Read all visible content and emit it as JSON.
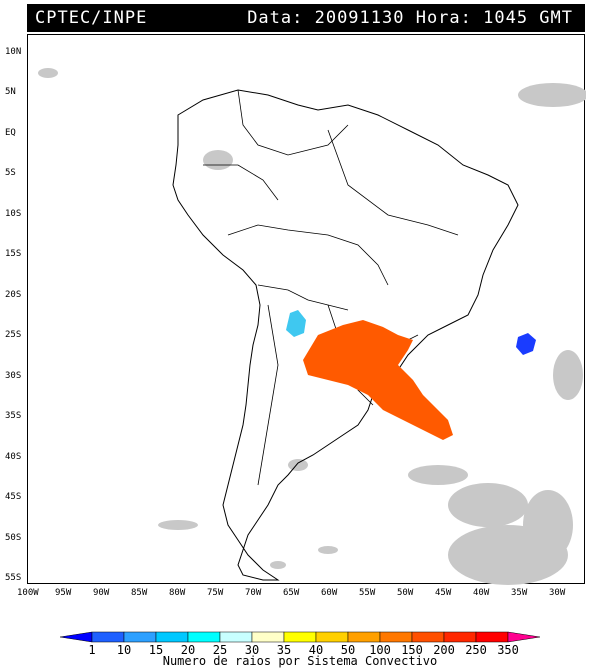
{
  "header": {
    "source": "CPTEC/INPE",
    "datetime": "Data: 20091130 Hora: 1045 GMT"
  },
  "lat_labels": [
    "10N",
    "5N",
    "EQ",
    "5S",
    "10S",
    "15S",
    "20S",
    "25S",
    "30S",
    "35S",
    "40S",
    "45S",
    "50S",
    "55S"
  ],
  "lon_labels": [
    "100W",
    "95W",
    "90W",
    "85W",
    "80W",
    "75W",
    "70W",
    "65W",
    "60W",
    "55W",
    "50W",
    "45W",
    "40W",
    "35W",
    "30W"
  ],
  "colorbar": {
    "title": "Numero de raios por Sistema Convectivo",
    "ticks": [
      "1",
      "10",
      "15",
      "20",
      "25",
      "30",
      "35",
      "40",
      "50",
      "100",
      "150",
      "200",
      "250",
      "350"
    ],
    "colors": [
      "#0000ff",
      "#1e60ff",
      "#2da0ff",
      "#00c8ff",
      "#00ffff",
      "#c8ffff",
      "#ffffc8",
      "#ffff00",
      "#ffd000",
      "#ffa000",
      "#ff7800",
      "#ff5000",
      "#ff2800",
      "#ff0000",
      "#ff0090"
    ]
  },
  "systems": [
    {
      "name": "cyan-system",
      "color": "#3fc8f0"
    },
    {
      "name": "orange-system",
      "color": "#ff5a00"
    },
    {
      "name": "blue-system",
      "color": "#1a3cff"
    }
  ]
}
